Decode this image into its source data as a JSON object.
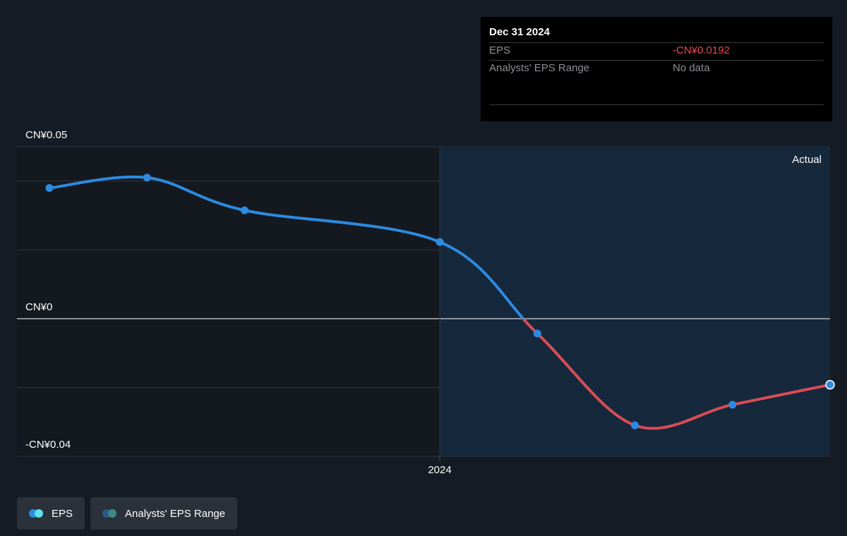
{
  "tooltip": {
    "date": "Dec 31 2024",
    "rows": [
      {
        "label": "EPS",
        "value": "-CN¥0.0192"
      },
      {
        "label": "Analysts' EPS Range",
        "value": "No data"
      }
    ]
  },
  "legend": [
    {
      "label": "EPS",
      "color_a": "#2c8be0",
      "color_b": "#5ee0e8"
    },
    {
      "label": "Analysts' EPS Range",
      "color_a": "#2a5a8a",
      "color_b": "#3d8b88"
    }
  ],
  "colors": {
    "positive_line": "#2c8be0",
    "negative_line": "#d94c56",
    "point": "#2c8be0",
    "actual_region": "#16283c",
    "zero_line": "#d0d4da",
    "grid": "#2e3540"
  },
  "chart_data": {
    "type": "line",
    "region_label": "Actual",
    "y_ticks": [
      {
        "value": 0.05,
        "label": "CN¥0.05"
      },
      {
        "value": 0,
        "label": "CN¥0"
      },
      {
        "value": -0.04,
        "label": "-CN¥0.04"
      }
    ],
    "x_ticks": [
      {
        "value": 2024.0,
        "label": "2024"
      }
    ],
    "xlim": [
      2022.85,
      2025.0
    ],
    "ylim": [
      -0.04,
      0.05
    ],
    "actual_start": 2024.0,
    "series": [
      {
        "points": [
          {
            "x": 2023.0,
            "y": 0.038
          },
          {
            "x": 2023.25,
            "y": 0.041
          },
          {
            "x": 2023.5,
            "y": 0.0315
          },
          {
            "x": 2024.0,
            "y": 0.0223
          },
          {
            "x": 2024.25,
            "y": -0.0043
          },
          {
            "x": 2024.5,
            "y": -0.031
          },
          {
            "x": 2024.75,
            "y": -0.025
          },
          {
            "x": 2025.0,
            "y": -0.0192
          }
        ]
      }
    ]
  }
}
